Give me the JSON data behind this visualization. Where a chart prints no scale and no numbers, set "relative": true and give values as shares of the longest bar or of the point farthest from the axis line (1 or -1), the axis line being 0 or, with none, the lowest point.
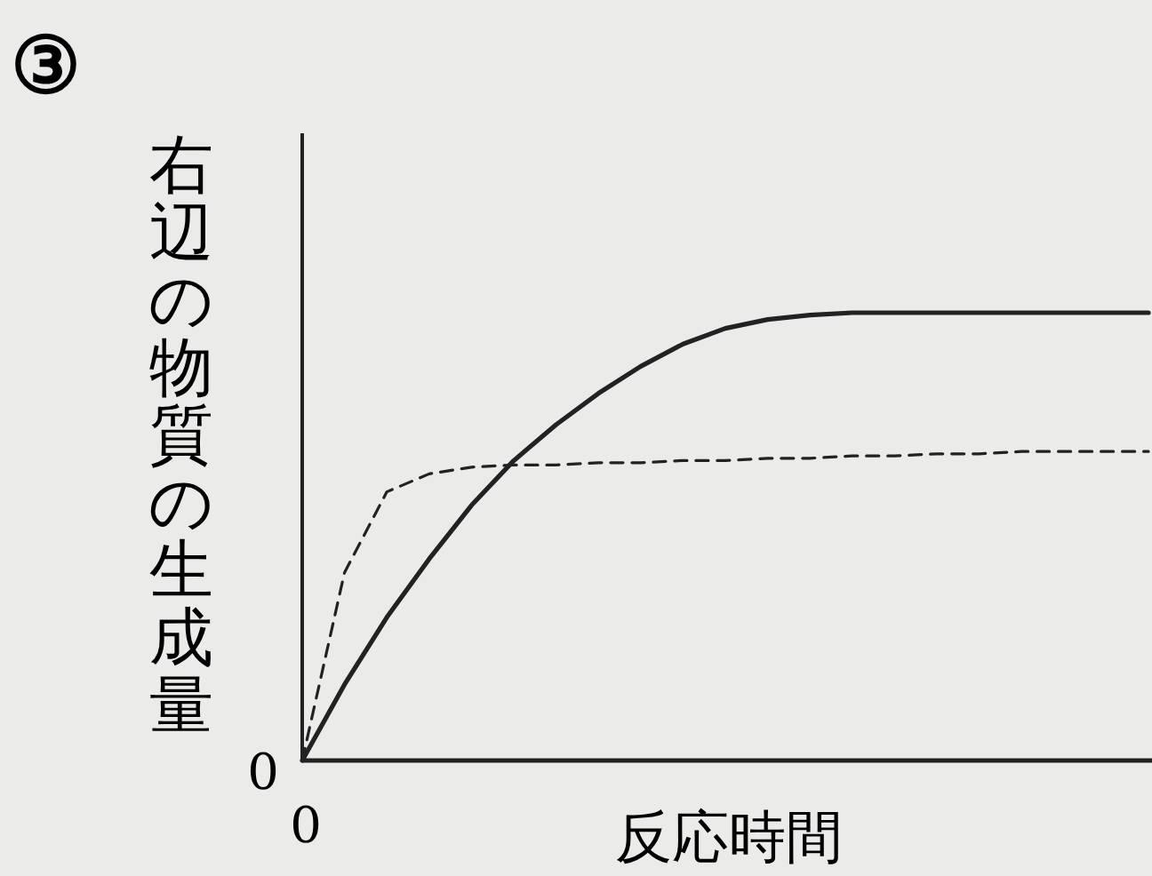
{
  "chart_data": {
    "type": "line",
    "title": "③",
    "xlabel": "反応時間",
    "ylabel": "右辺の物質の生成量",
    "annotations": [
      "0",
      "0"
    ],
    "relative": true,
    "categories": [
      null,
      null,
      null,
      null,
      null,
      null,
      null,
      null,
      null,
      null,
      null,
      null,
      null,
      null,
      null,
      null,
      null,
      null,
      null,
      null,
      null
    ],
    "series": [
      {
        "color": "#222222",
        "line_style": "solid",
        "values": [
          0,
          0.17,
          0.32,
          0.45,
          0.57,
          0.67,
          0.75,
          0.82,
          0.88,
          0.93,
          0.965,
          0.985,
          0.995,
          1,
          1,
          1,
          1,
          1,
          1,
          1,
          1
        ]
      },
      {
        "color": "#222222",
        "line_style": "dashed",
        "values": [
          0,
          0.42,
          0.6,
          0.64,
          0.655,
          0.66,
          0.66,
          0.665,
          0.665,
          0.67,
          0.67,
          0.675,
          0.675,
          0.68,
          0.68,
          0.685,
          0.685,
          0.69,
          0.69,
          0.69,
          0.69
        ]
      }
    ]
  }
}
